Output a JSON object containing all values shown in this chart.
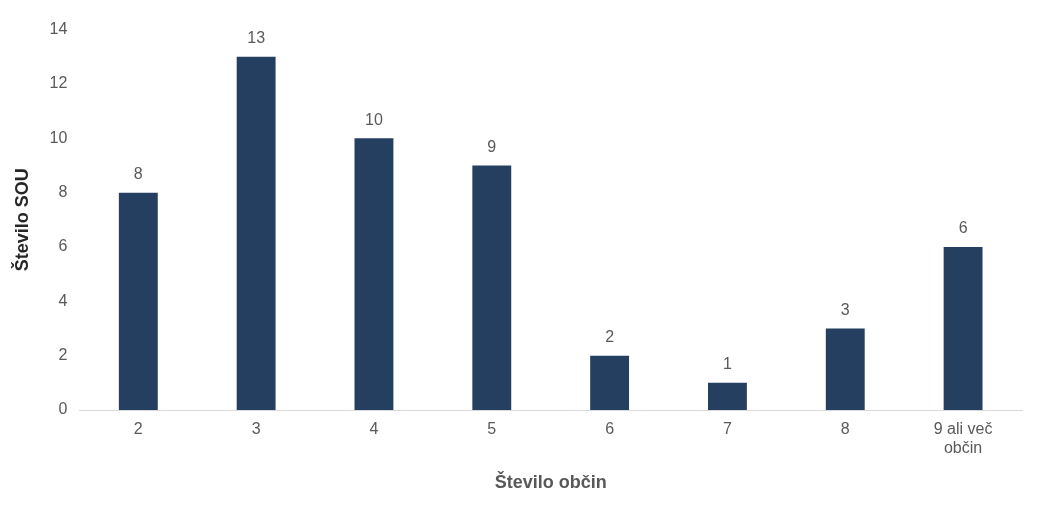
{
  "chart_data": {
    "type": "bar",
    "xlabel": "Število občin",
    "ylabel": "Število SOU",
    "categories": [
      "2",
      "3",
      "4",
      "5",
      "6",
      "7",
      "8",
      "9 ali več občin"
    ],
    "values": [
      8,
      13,
      10,
      9,
      2,
      1,
      3,
      6
    ],
    "color": "#243f60",
    "ylim": [
      0,
      14
    ],
    "yticks": [
      0,
      2,
      4,
      6,
      8,
      10,
      12,
      14
    ],
    "grid": false,
    "legend": false,
    "data_labels": true
  }
}
